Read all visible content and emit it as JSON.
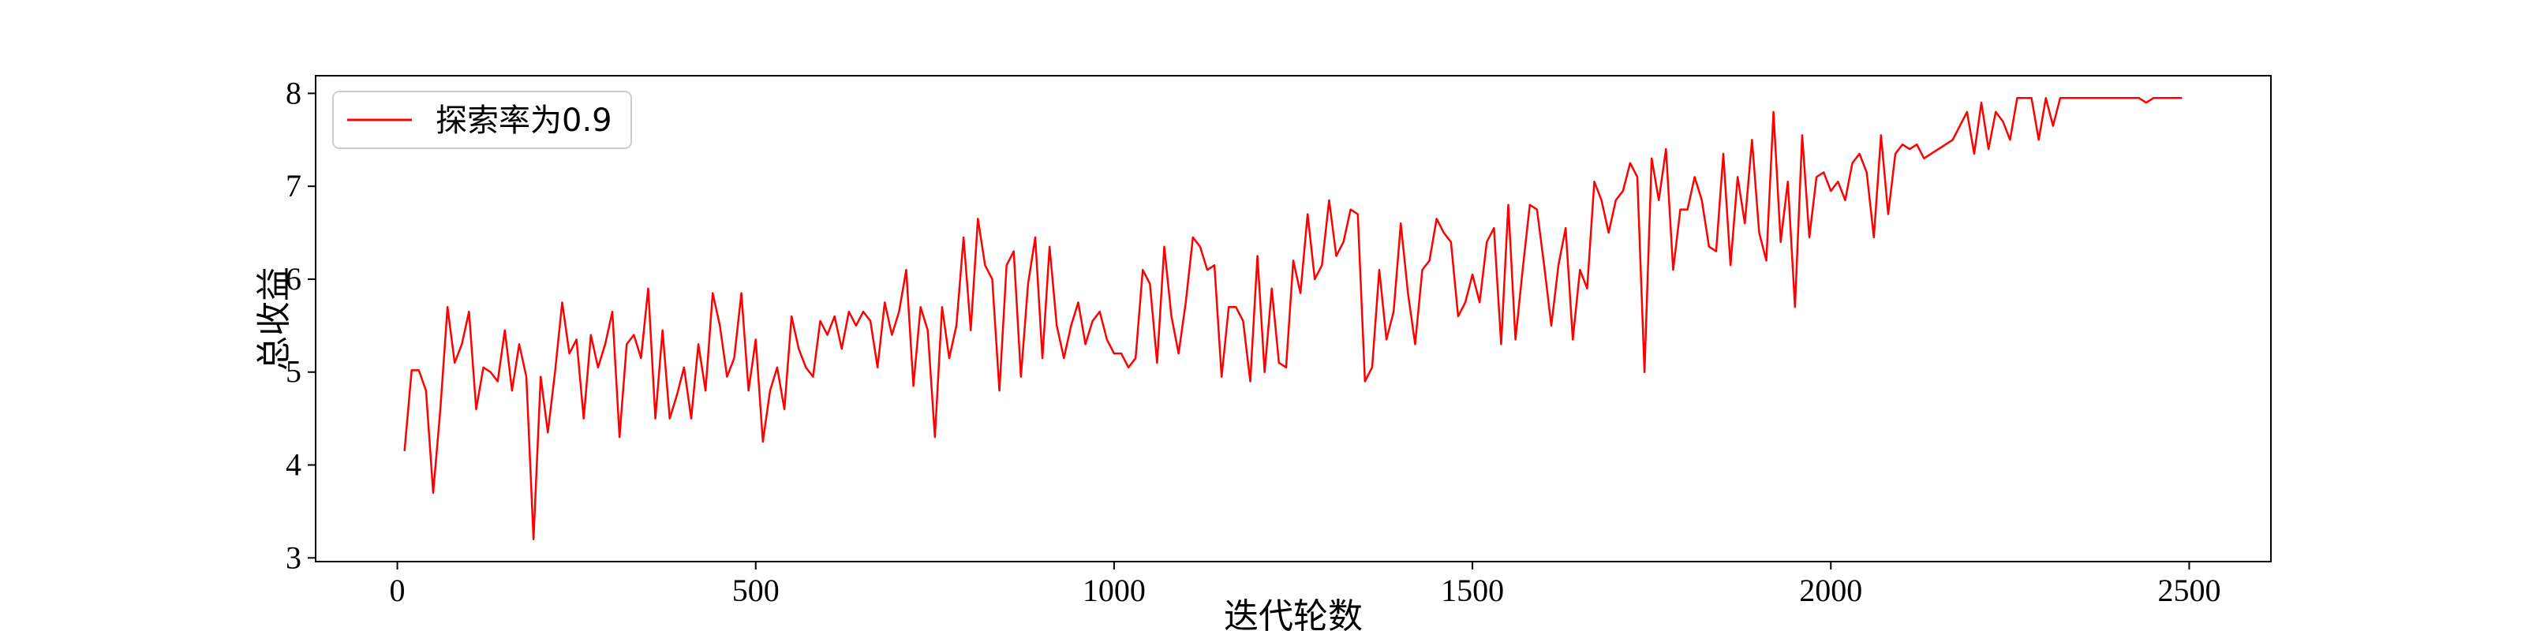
{
  "chart_data": {
    "type": "line",
    "xlabel": "迭代轮数",
    "ylabel": "总收益",
    "xlim": [
      -114,
      2614
    ],
    "ylim": [
      2.96,
      8.19
    ],
    "xticks": [
      0,
      500,
      1000,
      1500,
      2000,
      2500
    ],
    "yticks": [
      3,
      4,
      5,
      6,
      7,
      8
    ],
    "legend": "upper left",
    "series": [
      {
        "name": "探索率为0.9",
        "color": "#ff0000",
        "x": [
          10,
          20,
          30,
          40,
          50,
          60,
          70,
          80,
          90,
          100,
          110,
          120,
          130,
          140,
          150,
          160,
          170,
          180,
          190,
          200,
          210,
          220,
          230,
          240,
          250,
          260,
          270,
          280,
          290,
          300,
          310,
          320,
          330,
          340,
          350,
          360,
          370,
          380,
          390,
          400,
          410,
          420,
          430,
          440,
          450,
          460,
          470,
          480,
          490,
          500,
          510,
          520,
          530,
          540,
          550,
          560,
          570,
          580,
          590,
          600,
          610,
          620,
          630,
          640,
          650,
          660,
          670,
          680,
          690,
          700,
          710,
          720,
          730,
          740,
          750,
          760,
          770,
          780,
          790,
          800,
          810,
          820,
          830,
          840,
          850,
          860,
          870,
          880,
          890,
          900,
          910,
          920,
          930,
          940,
          950,
          960,
          970,
          980,
          990,
          1000,
          1010,
          1020,
          1030,
          1040,
          1050,
          1060,
          1070,
          1080,
          1090,
          1100,
          1110,
          1120,
          1130,
          1140,
          1150,
          1160,
          1170,
          1180,
          1190,
          1200,
          1210,
          1220,
          1230,
          1240,
          1250,
          1260,
          1270,
          1280,
          1290,
          1300,
          1310,
          1320,
          1330,
          1340,
          1350,
          1360,
          1370,
          1380,
          1390,
          1400,
          1410,
          1420,
          1430,
          1440,
          1450,
          1460,
          1470,
          1480,
          1490,
          1500,
          1510,
          1520,
          1530,
          1540,
          1550,
          1560,
          1570,
          1580,
          1590,
          1600,
          1610,
          1620,
          1630,
          1640,
          1650,
          1660,
          1670,
          1680,
          1690,
          1700,
          1710,
          1720,
          1730,
          1740,
          1750,
          1760,
          1770,
          1780,
          1790,
          1800,
          1810,
          1820,
          1830,
          1840,
          1850,
          1860,
          1870,
          1880,
          1890,
          1900,
          1910,
          1920,
          1930,
          1940,
          1950,
          1960,
          1970,
          1980,
          1990,
          2000,
          2010,
          2020,
          2030,
          2040,
          2050,
          2060,
          2070,
          2080,
          2090,
          2100,
          2110,
          2120,
          2130,
          2140,
          2150,
          2160,
          2170,
          2180,
          2190,
          2200,
          2210,
          2220,
          2230,
          2240,
          2250,
          2260,
          2270,
          2280,
          2290,
          2300,
          2310,
          2320,
          2330,
          2340,
          2350,
          2360,
          2370,
          2380,
          2390,
          2400,
          2410,
          2420,
          2430,
          2440,
          2450,
          2460,
          2470,
          2480,
          2490
        ],
        "values": [
          4.15,
          5.02,
          5.02,
          4.8,
          3.7,
          4.6,
          5.7,
          5.1,
          5.3,
          5.65,
          4.6,
          5.05,
          5.0,
          4.9,
          5.45,
          4.8,
          5.3,
          4.95,
          3.2,
          4.95,
          4.35,
          5.0,
          5.75,
          5.2,
          5.35,
          4.5,
          5.4,
          5.05,
          5.3,
          5.65,
          4.3,
          5.3,
          5.4,
          5.15,
          5.9,
          4.5,
          5.45,
          4.5,
          4.75,
          5.05,
          4.5,
          5.3,
          4.8,
          5.85,
          5.5,
          4.95,
          5.15,
          5.85,
          4.8,
          5.35,
          4.25,
          4.8,
          5.05,
          4.6,
          5.6,
          5.25,
          5.05,
          4.95,
          5.55,
          5.4,
          5.6,
          5.25,
          5.65,
          5.5,
          5.65,
          5.55,
          5.05,
          5.75,
          5.4,
          5.65,
          6.1,
          4.85,
          5.7,
          5.45,
          4.3,
          5.7,
          5.15,
          5.5,
          6.45,
          5.45,
          6.65,
          6.15,
          6.0,
          4.8,
          6.15,
          6.3,
          4.95,
          5.95,
          6.45,
          5.15,
          6.35,
          5.5,
          5.15,
          5.5,
          5.75,
          5.3,
          5.55,
          5.65,
          5.35,
          5.2,
          5.2,
          5.05,
          5.15,
          6.1,
          5.95,
          5.1,
          6.35,
          5.6,
          5.2,
          5.75,
          6.45,
          6.35,
          6.1,
          6.15,
          4.95,
          5.7,
          5.7,
          5.55,
          4.9,
          6.25,
          5.0,
          5.9,
          5.1,
          5.05,
          6.2,
          5.85,
          6.7,
          6.0,
          6.15,
          6.85,
          6.25,
          6.4,
          6.75,
          6.7,
          4.9,
          5.05,
          6.1,
          5.35,
          5.65,
          6.6,
          5.85,
          5.3,
          6.1,
          6.2,
          6.65,
          6.5,
          6.4,
          5.6,
          5.75,
          6.05,
          5.75,
          6.4,
          6.55,
          5.3,
          6.8,
          5.35,
          6.1,
          6.8,
          6.75,
          6.15,
          5.5,
          6.15,
          6.55,
          5.35,
          6.1,
          5.9,
          7.05,
          6.85,
          6.5,
          6.85,
          6.95,
          7.25,
          7.1,
          5.0,
          7.3,
          6.85,
          7.4,
          6.1,
          6.75,
          6.75,
          7.1,
          6.85,
          6.35,
          6.3,
          7.35,
          6.15,
          7.1,
          6.6,
          7.5,
          6.5,
          6.2,
          7.8,
          6.4,
          7.05,
          5.7,
          7.55,
          6.45,
          7.1,
          7.15,
          6.95,
          7.05,
          6.85,
          7.25,
          7.35,
          7.15,
          6.45,
          7.55,
          6.7,
          7.35,
          7.45,
          7.4,
          7.45,
          7.3,
          7.35,
          7.4,
          7.45,
          7.5,
          7.65,
          7.8,
          7.35,
          7.9,
          7.4,
          7.8,
          7.7,
          7.5,
          7.95,
          7.95,
          7.95,
          7.5,
          7.95,
          7.65,
          7.95,
          7.95,
          7.95,
          7.95,
          7.95,
          7.95,
          7.95,
          7.95,
          7.95,
          7.95,
          7.95,
          7.95,
          7.9,
          7.95,
          7.95,
          7.95,
          7.95,
          7.95
        ]
      }
    ]
  }
}
